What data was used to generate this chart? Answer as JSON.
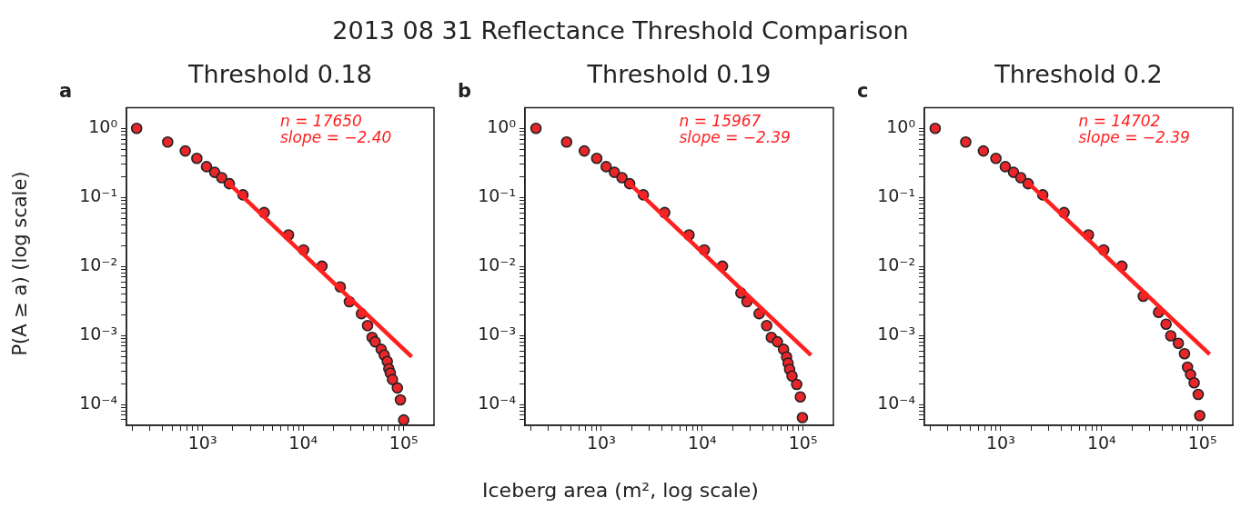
{
  "chart_data": [
    {
      "type": "scatter",
      "title": "Threshold 0.18",
      "ylabel": "P(A ≥ a) (log scale)",
      "annotations": [
        "a",
        "n = 17650",
        "slope = −2.40"
      ],
      "log": "xy",
      "grid": false,
      "legend": false,
      "xlim": [
        175,
        200000
      ],
      "ylim": [
        5e-05,
        2
      ],
      "xticks": [
        {
          "value": 200,
          "label": null
        },
        {
          "value": 300,
          "label": null
        },
        {
          "value": 400,
          "label": null
        },
        {
          "value": 500,
          "label": null
        },
        {
          "value": 600,
          "label": null
        },
        {
          "value": 700,
          "label": null
        },
        {
          "value": 800,
          "label": null
        },
        {
          "value": 900,
          "label": null
        },
        {
          "value": 1000,
          "label": "10³"
        },
        {
          "value": 2000,
          "label": null
        },
        {
          "value": 3000,
          "label": null
        },
        {
          "value": 4000,
          "label": null
        },
        {
          "value": 5000,
          "label": null
        },
        {
          "value": 6000,
          "label": null
        },
        {
          "value": 7000,
          "label": null
        },
        {
          "value": 8000,
          "label": null
        },
        {
          "value": 9000,
          "label": null
        },
        {
          "value": 10000,
          "label": "10⁴"
        },
        {
          "value": 20000,
          "label": null
        },
        {
          "value": 30000,
          "label": null
        },
        {
          "value": 40000,
          "label": null
        },
        {
          "value": 50000,
          "label": null
        },
        {
          "value": 60000,
          "label": null
        },
        {
          "value": 70000,
          "label": null
        },
        {
          "value": 80000,
          "label": null
        },
        {
          "value": 90000,
          "label": null
        },
        {
          "value": 100000,
          "label": "10⁵"
        }
      ],
      "yticks": [
        {
          "value": 6e-05,
          "label": null
        },
        {
          "value": 7e-05,
          "label": null
        },
        {
          "value": 8e-05,
          "label": null
        },
        {
          "value": 9e-05,
          "label": null
        },
        {
          "value": 0.0001,
          "label": "10⁻⁴"
        },
        {
          "value": 0.0002,
          "label": null
        },
        {
          "value": 0.0003,
          "label": null
        },
        {
          "value": 0.0004,
          "label": null
        },
        {
          "value": 0.0005,
          "label": null
        },
        {
          "value": 0.0006,
          "label": null
        },
        {
          "value": 0.0007,
          "label": null
        },
        {
          "value": 0.0008,
          "label": null
        },
        {
          "value": 0.0009,
          "label": null
        },
        {
          "value": 0.001,
          "label": "10⁻³"
        },
        {
          "value": 0.002,
          "label": null
        },
        {
          "value": 0.003,
          "label": null
        },
        {
          "value": 0.004,
          "label": null
        },
        {
          "value": 0.005,
          "label": null
        },
        {
          "value": 0.006,
          "label": null
        },
        {
          "value": 0.007,
          "label": null
        },
        {
          "value": 0.008,
          "label": null
        },
        {
          "value": 0.009,
          "label": null
        },
        {
          "value": 0.01,
          "label": "10⁻²"
        },
        {
          "value": 0.02,
          "label": null
        },
        {
          "value": 0.03,
          "label": null
        },
        {
          "value": 0.04,
          "label": null
        },
        {
          "value": 0.05,
          "label": null
        },
        {
          "value": 0.06,
          "label": null
        },
        {
          "value": 0.07,
          "label": null
        },
        {
          "value": 0.08,
          "label": null
        },
        {
          "value": 0.09,
          "label": null
        },
        {
          "value": 0.1,
          "label": "10⁻¹"
        },
        {
          "value": 0.2,
          "label": null
        },
        {
          "value": 0.3,
          "label": null
        },
        {
          "value": 0.4,
          "label": null
        },
        {
          "value": 0.5,
          "label": null
        },
        {
          "value": 0.6,
          "label": null
        },
        {
          "value": 0.7,
          "label": null
        },
        {
          "value": 0.8,
          "label": null
        },
        {
          "value": 0.9,
          "label": null
        },
        {
          "value": 1,
          "label": "10⁰"
        }
      ],
      "series": [
        {
          "type": "scatter",
          "marker": "circle",
          "color": "#e8262a",
          "x": [
            221,
            450,
            673,
            877,
            1094,
            1320,
            1550,
            1845,
            2520,
            4100,
            7160,
            10100,
            15400,
            23400,
            28800,
            38000,
            43700,
            48500,
            52000,
            59700,
            64100,
            68700,
            71100,
            73600,
            77300,
            86500,
            92700,
            100000
          ],
          "values": [
            1,
            0.634,
            0.471,
            0.368,
            0.279,
            0.231,
            0.193,
            0.158,
            0.109,
            0.0603,
            0.0286,
            0.0174,
            0.0101,
            0.00505,
            0.00308,
            0.00207,
            0.00139,
            0.00094,
            0.00081,
            0.00063,
            0.00052,
            0.00042,
            0.00033,
            0.000286,
            0.00023,
            0.000174,
            0.000117,
            5.97e-05
          ]
        },
        {
          "type": "line",
          "color": "#ff1f1f",
          "x": [
            1780,
            120000
          ],
          "values": [
            0.165,
            0.00049
          ]
        }
      ]
    },
    {
      "type": "scatter",
      "title": "Threshold 0.19",
      "subtitle": "2013 08 31 Reflectance Threshold Comparison",
      "xlabel": "Iceberg area (m², log scale)",
      "annotations": [
        "b",
        "n = 15967",
        "slope = −2.39"
      ],
      "log": "xy",
      "grid": false,
      "legend": false,
      "xlim": [
        175,
        200000
      ],
      "ylim": [
        5e-05,
        2
      ],
      "xticks": [
        {
          "value": 200,
          "label": null
        },
        {
          "value": 300,
          "label": null
        },
        {
          "value": 400,
          "label": null
        },
        {
          "value": 500,
          "label": null
        },
        {
          "value": 600,
          "label": null
        },
        {
          "value": 700,
          "label": null
        },
        {
          "value": 800,
          "label": null
        },
        {
          "value": 900,
          "label": null
        },
        {
          "value": 1000,
          "label": "10³"
        },
        {
          "value": 2000,
          "label": null
        },
        {
          "value": 3000,
          "label": null
        },
        {
          "value": 4000,
          "label": null
        },
        {
          "value": 5000,
          "label": null
        },
        {
          "value": 6000,
          "label": null
        },
        {
          "value": 7000,
          "label": null
        },
        {
          "value": 8000,
          "label": null
        },
        {
          "value": 9000,
          "label": null
        },
        {
          "value": 10000,
          "label": "10⁴"
        },
        {
          "value": 20000,
          "label": null
        },
        {
          "value": 30000,
          "label": null
        },
        {
          "value": 40000,
          "label": null
        },
        {
          "value": 50000,
          "label": null
        },
        {
          "value": 60000,
          "label": null
        },
        {
          "value": 70000,
          "label": null
        },
        {
          "value": 80000,
          "label": null
        },
        {
          "value": 90000,
          "label": null
        },
        {
          "value": 100000,
          "label": "10⁵"
        }
      ],
      "yticks": [
        {
          "value": 6e-05,
          "label": null
        },
        {
          "value": 7e-05,
          "label": null
        },
        {
          "value": 8e-05,
          "label": null
        },
        {
          "value": 9e-05,
          "label": null
        },
        {
          "value": 0.0001,
          "label": "10⁻⁴"
        },
        {
          "value": 0.0002,
          "label": null
        },
        {
          "value": 0.0003,
          "label": null
        },
        {
          "value": 0.0004,
          "label": null
        },
        {
          "value": 0.0005,
          "label": null
        },
        {
          "value": 0.0006,
          "label": null
        },
        {
          "value": 0.0007,
          "label": null
        },
        {
          "value": 0.0008,
          "label": null
        },
        {
          "value": 0.0009,
          "label": null
        },
        {
          "value": 0.001,
          "label": "10⁻³"
        },
        {
          "value": 0.002,
          "label": null
        },
        {
          "value": 0.003,
          "label": null
        },
        {
          "value": 0.004,
          "label": null
        },
        {
          "value": 0.005,
          "label": null
        },
        {
          "value": 0.006,
          "label": null
        },
        {
          "value": 0.007,
          "label": null
        },
        {
          "value": 0.008,
          "label": null
        },
        {
          "value": 0.009,
          "label": null
        },
        {
          "value": 0.01,
          "label": "10⁻²"
        },
        {
          "value": 0.02,
          "label": null
        },
        {
          "value": 0.03,
          "label": null
        },
        {
          "value": 0.04,
          "label": null
        },
        {
          "value": 0.05,
          "label": null
        },
        {
          "value": 0.06,
          "label": null
        },
        {
          "value": 0.07,
          "label": null
        },
        {
          "value": 0.08,
          "label": null
        },
        {
          "value": 0.09,
          "label": null
        },
        {
          "value": 0.1,
          "label": "10⁻¹"
        },
        {
          "value": 0.2,
          "label": null
        },
        {
          "value": 0.3,
          "label": null
        },
        {
          "value": 0.4,
          "label": null
        },
        {
          "value": 0.5,
          "label": null
        },
        {
          "value": 0.6,
          "label": null
        },
        {
          "value": 0.7,
          "label": null
        },
        {
          "value": 0.8,
          "label": null
        },
        {
          "value": 0.9,
          "label": null
        },
        {
          "value": 1,
          "label": "10⁰"
        }
      ],
      "series": [
        {
          "type": "scatter",
          "marker": "circle",
          "color": "#e8262a",
          "x": [
            225,
            453,
            678,
            901,
            1117,
            1349,
            1603,
            1910,
            2610,
            4250,
            7410,
            10500,
            15900,
            24200,
            27800,
            36700,
            43600,
            48500,
            55700,
            64100,
            68700,
            71100,
            73600,
            77800,
            86500,
            94000,
            98600
          ],
          "values": [
            1,
            0.634,
            0.471,
            0.368,
            0.279,
            0.231,
            0.193,
            0.158,
            0.109,
            0.0603,
            0.0286,
            0.0174,
            0.0101,
            0.00413,
            0.00308,
            0.00207,
            0.00139,
            0.00094,
            0.00081,
            0.00063,
            0.00049,
            0.000397,
            0.000323,
            0.000259,
            0.000196,
            0.000129,
            6.47e-05
          ]
        },
        {
          "type": "line",
          "color": "#ff1f1f",
          "x": [
            1850,
            120000
          ],
          "values": [
            0.165,
            0.000518
          ]
        }
      ]
    },
    {
      "type": "scatter",
      "title": "Threshold 0.2",
      "annotations": [
        "c",
        "n = 14702",
        "slope = −2.39"
      ],
      "log": "xy",
      "grid": false,
      "legend": false,
      "xlim": [
        175,
        200000
      ],
      "ylim": [
        5e-05,
        2
      ],
      "xticks": [
        {
          "value": 200,
          "label": null
        },
        {
          "value": 300,
          "label": null
        },
        {
          "value": 400,
          "label": null
        },
        {
          "value": 500,
          "label": null
        },
        {
          "value": 600,
          "label": null
        },
        {
          "value": 700,
          "label": null
        },
        {
          "value": 800,
          "label": null
        },
        {
          "value": 900,
          "label": null
        },
        {
          "value": 1000,
          "label": "10³"
        },
        {
          "value": 2000,
          "label": null
        },
        {
          "value": 3000,
          "label": null
        },
        {
          "value": 4000,
          "label": null
        },
        {
          "value": 5000,
          "label": null
        },
        {
          "value": 6000,
          "label": null
        },
        {
          "value": 7000,
          "label": null
        },
        {
          "value": 8000,
          "label": null
        },
        {
          "value": 9000,
          "label": null
        },
        {
          "value": 10000,
          "label": "10⁴"
        },
        {
          "value": 20000,
          "label": null
        },
        {
          "value": 30000,
          "label": null
        },
        {
          "value": 40000,
          "label": null
        },
        {
          "value": 50000,
          "label": null
        },
        {
          "value": 60000,
          "label": null
        },
        {
          "value": 70000,
          "label": null
        },
        {
          "value": 80000,
          "label": null
        },
        {
          "value": 90000,
          "label": null
        },
        {
          "value": 100000,
          "label": "10⁵"
        }
      ],
      "yticks": [
        {
          "value": 6e-05,
          "label": null
        },
        {
          "value": 7e-05,
          "label": null
        },
        {
          "value": 8e-05,
          "label": null
        },
        {
          "value": 9e-05,
          "label": null
        },
        {
          "value": 0.0001,
          "label": "10⁻⁴"
        },
        {
          "value": 0.0002,
          "label": null
        },
        {
          "value": 0.0003,
          "label": null
        },
        {
          "value": 0.0004,
          "label": null
        },
        {
          "value": 0.0005,
          "label": null
        },
        {
          "value": 0.0006,
          "label": null
        },
        {
          "value": 0.0007,
          "label": null
        },
        {
          "value": 0.0008,
          "label": null
        },
        {
          "value": 0.0009,
          "label": null
        },
        {
          "value": 0.001,
          "label": "10⁻³"
        },
        {
          "value": 0.002,
          "label": null
        },
        {
          "value": 0.003,
          "label": null
        },
        {
          "value": 0.004,
          "label": null
        },
        {
          "value": 0.005,
          "label": null
        },
        {
          "value": 0.006,
          "label": null
        },
        {
          "value": 0.007,
          "label": null
        },
        {
          "value": 0.008,
          "label": null
        },
        {
          "value": 0.009,
          "label": null
        },
        {
          "value": 0.01,
          "label": "10⁻²"
        },
        {
          "value": 0.02,
          "label": null
        },
        {
          "value": 0.03,
          "label": null
        },
        {
          "value": 0.04,
          "label": null
        },
        {
          "value": 0.05,
          "label": null
        },
        {
          "value": 0.06,
          "label": null
        },
        {
          "value": 0.07,
          "label": null
        },
        {
          "value": 0.08,
          "label": null
        },
        {
          "value": 0.09,
          "label": null
        },
        {
          "value": 0.1,
          "label": "10⁻¹"
        },
        {
          "value": 0.2,
          "label": null
        },
        {
          "value": 0.3,
          "label": null
        },
        {
          "value": 0.4,
          "label": null
        },
        {
          "value": 0.5,
          "label": null
        },
        {
          "value": 0.6,
          "label": null
        },
        {
          "value": 0.7,
          "label": null
        },
        {
          "value": 0.8,
          "label": null
        },
        {
          "value": 0.9,
          "label": null
        },
        {
          "value": 1,
          "label": "10⁰"
        }
      ],
      "series": [
        {
          "type": "scatter",
          "marker": "circle",
          "color": "#e8262a",
          "x": [
            224,
            450,
            673,
            896,
            1110,
            1340,
            1580,
            1870,
            2610,
            4250,
            7410,
            10500,
            15900,
            25900,
            36700,
            43600,
            48500,
            57700,
            66400,
            71100,
            76200,
            82800,
            90800,
            94000
          ],
          "values": [
            1,
            0.634,
            0.471,
            0.368,
            0.279,
            0.231,
            0.193,
            0.158,
            0.109,
            0.0603,
            0.0286,
            0.0174,
            0.0101,
            0.0037,
            0.00216,
            0.00146,
            0.00099,
            0.00077,
            0.000545,
            0.000348,
            0.000272,
            0.000206,
            0.00014,
            6.93e-05
          ]
        },
        {
          "type": "line",
          "color": "#ff1f1f",
          "x": [
            1850,
            118000
          ],
          "values": [
            0.165,
            0.000533
          ]
        }
      ]
    }
  ]
}
